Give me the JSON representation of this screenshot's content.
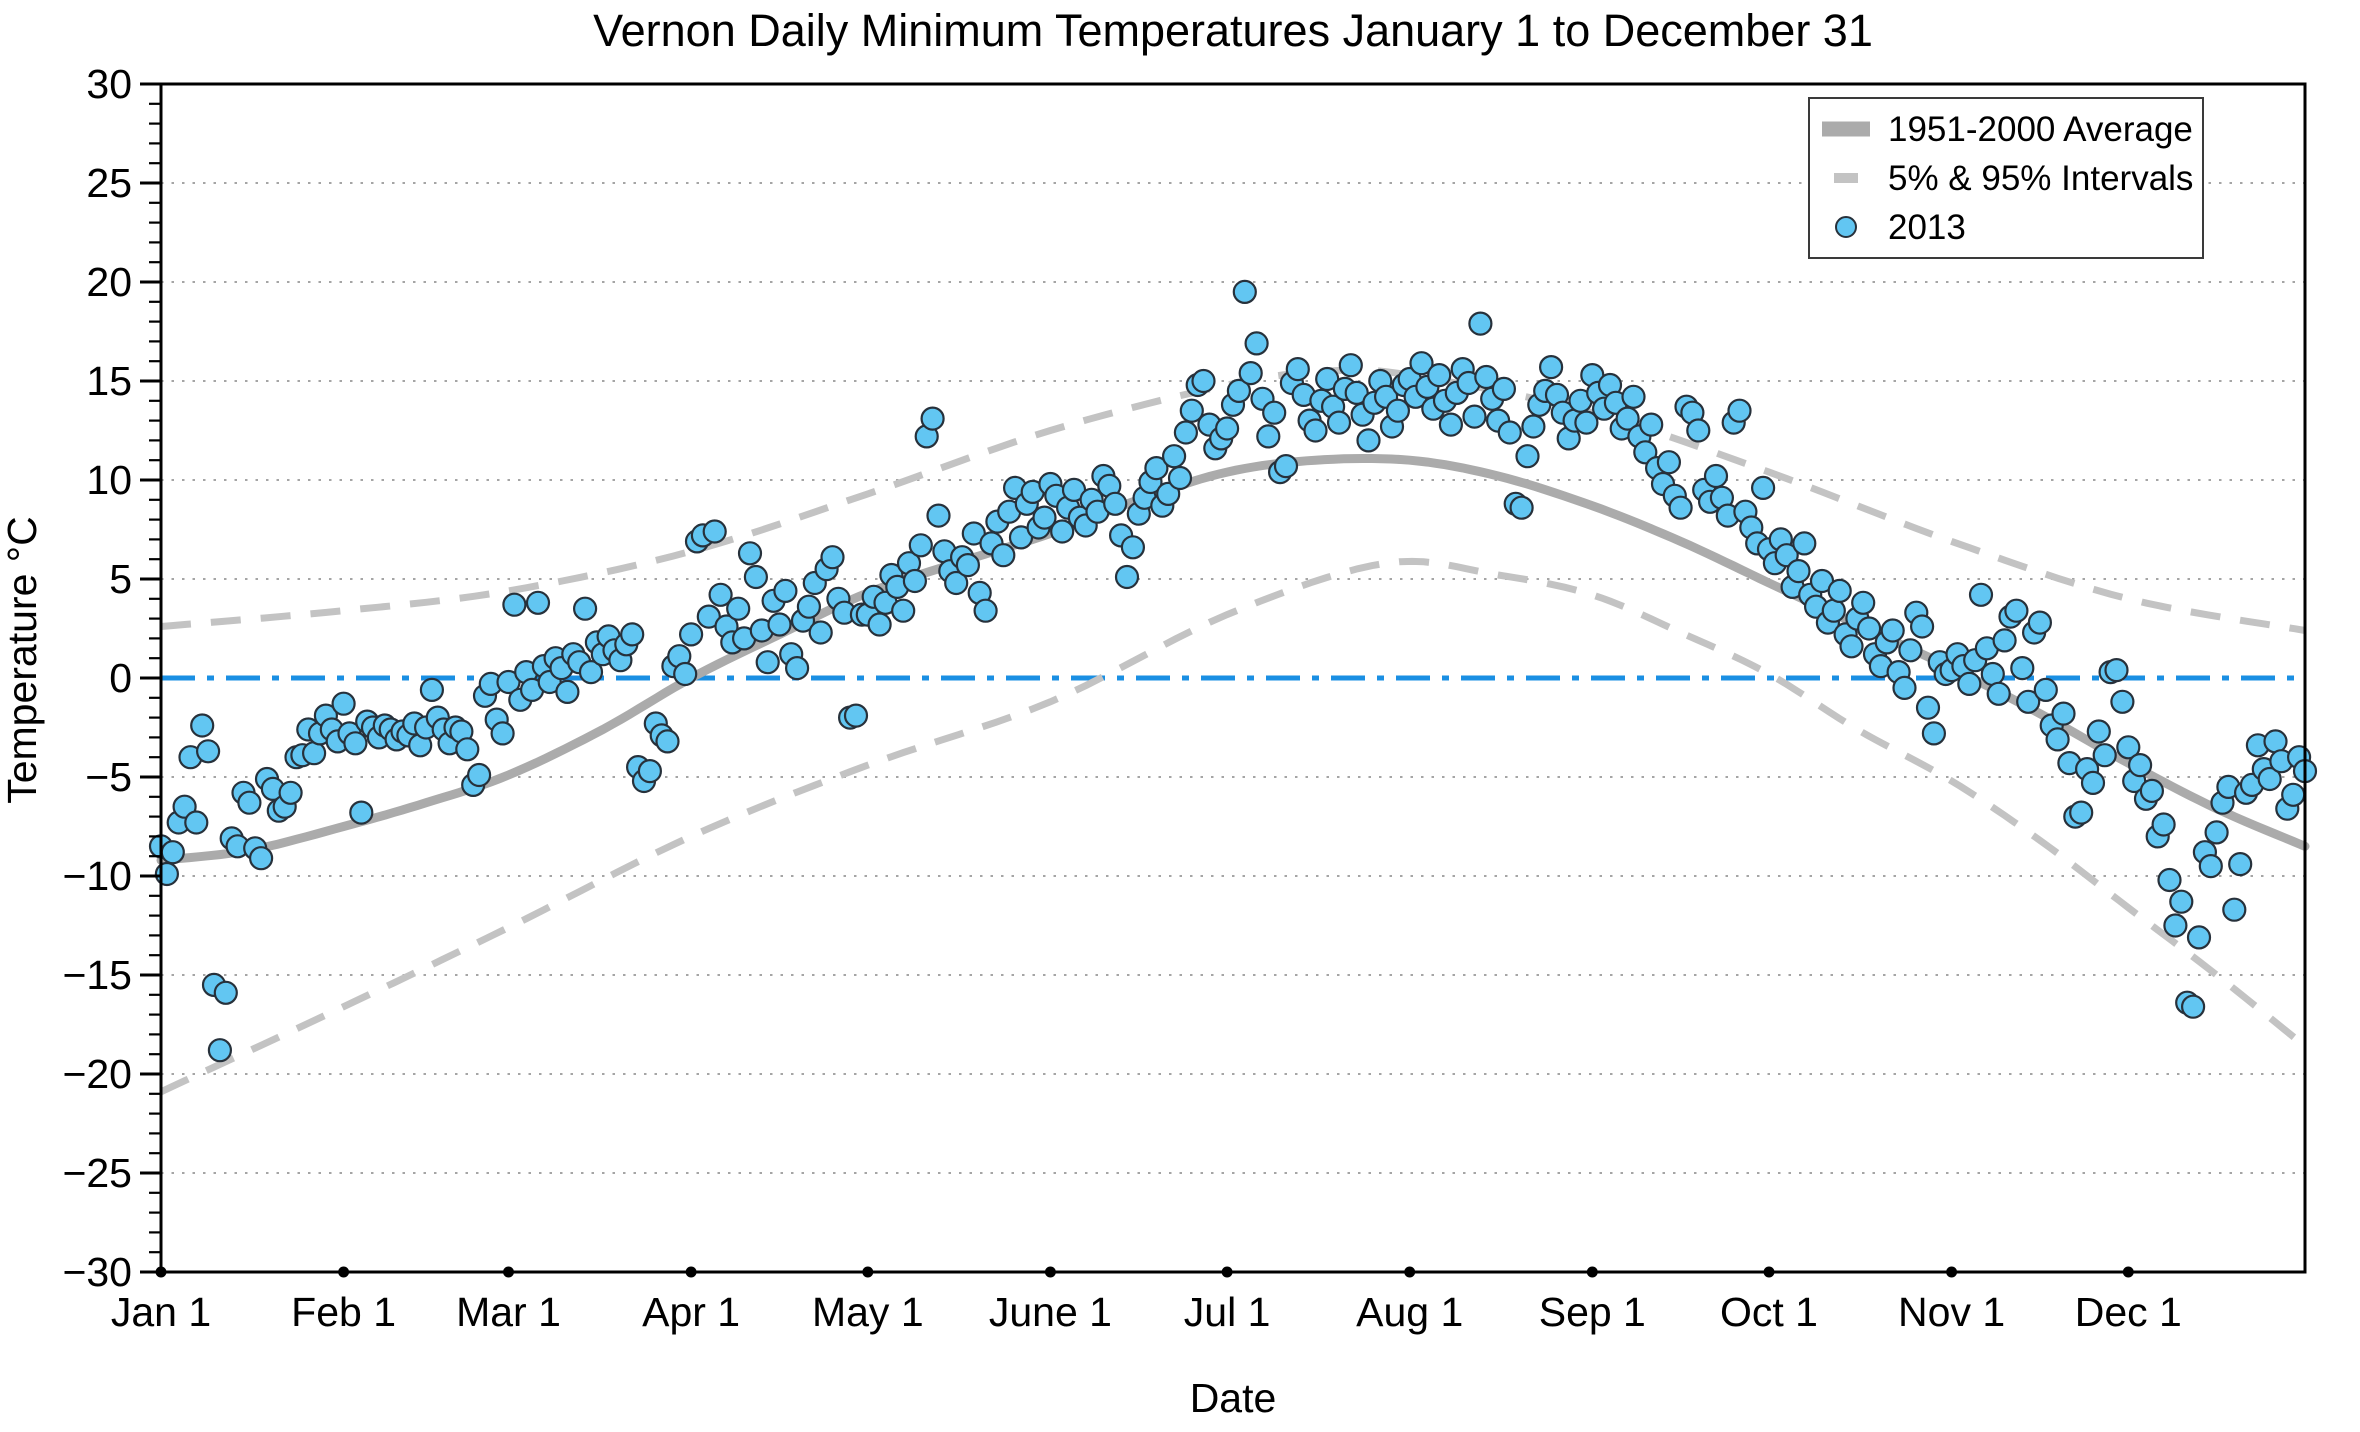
{
  "title": "Vernon Daily Minimum Temperatures January 1 to December 31",
  "axis": {
    "x_label": "Date",
    "y_label": "Temperature °C",
    "y_tick_labels": [
      "30",
      "25",
      "20",
      "15",
      "10",
      "5",
      "0",
      "−5",
      "−10",
      "−15",
      "−20",
      "−25",
      "−30"
    ],
    "y_tick_values": [
      30,
      25,
      20,
      15,
      10,
      5,
      0,
      -5,
      -10,
      -15,
      -20,
      -25,
      -30
    ],
    "y_minor_step": 1,
    "x_tick_labels": [
      "Jan 1",
      "Feb 1",
      "Mar 1",
      "Apr 1",
      "May 1",
      "June 1",
      "Jul 1",
      "Aug 1",
      "Sep 1",
      "Oct 1",
      "Nov 1",
      "Dec 1"
    ],
    "x_tick_days": [
      0,
      31,
      59,
      90,
      120,
      151,
      181,
      212,
      243,
      273,
      304,
      334
    ]
  },
  "legend": {
    "items": [
      {
        "label": "1951-2000 Average",
        "swatch": "thick-gray-line"
      },
      {
        "label": "5% & 95% Intervals",
        "swatch": "gray-dash"
      },
      {
        "label": "2013",
        "swatch": "blue-dot"
      }
    ]
  },
  "colors": {
    "average_line": "#ABABAB",
    "interval_dash": "#C3C3C3",
    "zero_line": "#1A8FE3",
    "scatter_fill": "#62C6F2",
    "scatter_edge": "#27313B",
    "grid": "#8F8F8F",
    "axis": "#000000"
  },
  "chart_data": {
    "type": "scatter",
    "title": "Vernon Daily Minimum Temperatures January 1 to December 31",
    "xlabel": "Date",
    "ylabel": "Temperature °C",
    "x_unit": "day_of_year",
    "xlim": [
      0,
      364
    ],
    "ylim": [
      -30,
      30
    ],
    "grid": "dotted horizontal lines at multiples of 5 °C",
    "legend_position": "top-right",
    "zero_reference_line": 0,
    "month_start_days": [
      0,
      31,
      59,
      90,
      120,
      151,
      181,
      212,
      243,
      273,
      304,
      334
    ],
    "series": [
      {
        "name": "1951-2000 Average",
        "type": "line",
        "style": "thick-solid-gray",
        "points": [
          [
            0,
            -9.2
          ],
          [
            15,
            -8.7
          ],
          [
            31,
            -7.5
          ],
          [
            45,
            -6.3
          ],
          [
            59,
            -4.9
          ],
          [
            75,
            -2.6
          ],
          [
            90,
            0.0
          ],
          [
            105,
            2.2
          ],
          [
            120,
            4.3
          ],
          [
            135,
            5.8
          ],
          [
            151,
            7.3
          ],
          [
            166,
            9.0
          ],
          [
            181,
            10.4
          ],
          [
            196,
            11.0
          ],
          [
            212,
            11.0
          ],
          [
            227,
            10.2
          ],
          [
            243,
            8.7
          ],
          [
            258,
            6.9
          ],
          [
            273,
            4.8
          ],
          [
            288,
            2.7
          ],
          [
            304,
            0.5
          ],
          [
            319,
            -1.8
          ],
          [
            334,
            -4.3
          ],
          [
            349,
            -6.6
          ],
          [
            364,
            -8.5
          ]
        ]
      },
      {
        "name": "95% Interval",
        "type": "line",
        "style": "dashed-gray",
        "points": [
          [
            0,
            2.6
          ],
          [
            31,
            3.4
          ],
          [
            59,
            4.4
          ],
          [
            90,
            6.4
          ],
          [
            120,
            9.3
          ],
          [
            151,
            12.5
          ],
          [
            181,
            14.8
          ],
          [
            198,
            15.5
          ],
          [
            212,
            15.3
          ],
          [
            243,
            13.4
          ],
          [
            273,
            10.4
          ],
          [
            304,
            6.9
          ],
          [
            334,
            4.0
          ],
          [
            364,
            2.4
          ]
        ]
      },
      {
        "name": "5% Interval",
        "type": "line",
        "style": "dashed-gray",
        "points": [
          [
            0,
            -20.9
          ],
          [
            31,
            -16.6
          ],
          [
            59,
            -12.6
          ],
          [
            90,
            -8.0
          ],
          [
            120,
            -4.4
          ],
          [
            151,
            -1.2
          ],
          [
            181,
            3.2
          ],
          [
            208,
            5.8
          ],
          [
            227,
            5.2
          ],
          [
            243,
            4.2
          ],
          [
            258,
            2.3
          ],
          [
            273,
            0.2
          ],
          [
            288,
            -2.6
          ],
          [
            304,
            -5.2
          ],
          [
            319,
            -8.2
          ],
          [
            334,
            -11.6
          ],
          [
            349,
            -15.0
          ],
          [
            364,
            -18.6
          ]
        ]
      },
      {
        "name": "2013",
        "type": "scatter",
        "start_day": 0,
        "daily_min_temps_c": [
          -8.5,
          -9.9,
          -8.8,
          -7.3,
          -6.5,
          -4.0,
          -7.3,
          -2.4,
          -3.7,
          -15.5,
          -18.8,
          -15.9,
          -8.1,
          -8.5,
          -5.8,
          -6.3,
          -8.6,
          -9.1,
          -5.1,
          -5.6,
          -6.7,
          -6.5,
          -5.8,
          -4.0,
          -3.9,
          -2.6,
          -3.8,
          -2.8,
          -1.9,
          -2.6,
          -3.2,
          -1.3,
          -2.8,
          -3.3,
          -6.8,
          -2.2,
          -2.5,
          -3.0,
          -2.4,
          -2.6,
          -3.1,
          -2.7,
          -2.9,
          -2.3,
          -3.4,
          -2.5,
          -0.6,
          -2.0,
          -2.6,
          -3.3,
          -2.5,
          -2.7,
          -3.6,
          -5.4,
          -4.9,
          -0.9,
          -0.3,
          -2.1,
          -2.8,
          -0.2,
          3.7,
          -1.1,
          0.3,
          -0.6,
          3.8,
          0.6,
          -0.2,
          1.0,
          0.5,
          -0.7,
          1.2,
          0.8,
          3.5,
          0.3,
          1.8,
          1.2,
          2.1,
          1.4,
          0.9,
          1.7,
          2.2,
          -4.5,
          -5.2,
          -4.7,
          -2.3,
          -2.9,
          -3.2,
          0.6,
          1.1,
          0.2,
          2.2,
          6.9,
          7.2,
          3.1,
          7.4,
          4.2,
          2.6,
          1.8,
          3.5,
          2.0,
          6.3,
          5.1,
          2.4,
          0.8,
          3.9,
          2.7,
          4.4,
          1.2,
          0.5,
          2.9,
          3.6,
          4.8,
          2.3,
          5.5,
          6.1,
          4.0,
          3.3,
          -2.0,
          -1.9,
          3.2,
          3.2,
          4.1,
          2.7,
          3.8,
          5.2,
          4.6,
          3.4,
          5.8,
          4.9,
          6.7,
          12.2,
          13.1,
          8.2,
          6.4,
          5.4,
          4.8,
          6.1,
          5.7,
          7.3,
          4.3,
          3.4,
          6.8,
          7.9,
          6.2,
          8.4,
          9.6,
          7.1,
          8.8,
          9.4,
          7.6,
          8.1,
          9.8,
          9.2,
          7.4,
          8.6,
          9.5,
          8.1,
          7.7,
          9.0,
          8.4,
          10.2,
          9.7,
          8.8,
          7.2,
          5.1,
          6.6,
          8.3,
          9.1,
          9.9,
          10.6,
          8.7,
          9.3,
          11.2,
          10.1,
          12.4,
          13.5,
          14.8,
          15.0,
          12.8,
          11.6,
          12.1,
          12.6,
          13.8,
          14.5,
          19.5,
          15.4,
          16.9,
          14.1,
          12.2,
          13.4,
          10.4,
          10.7,
          14.9,
          15.6,
          14.3,
          13.0,
          12.5,
          14.0,
          15.1,
          13.7,
          12.9,
          14.6,
          15.8,
          14.4,
          13.3,
          12.0,
          13.9,
          15.0,
          14.2,
          12.7,
          13.5,
          14.8,
          15.1,
          14.2,
          15.9,
          14.7,
          13.6,
          15.3,
          14.0,
          12.8,
          14.4,
          15.6,
          14.9,
          13.2,
          17.9,
          15.2,
          14.1,
          13.0,
          14.6,
          12.4,
          8.8,
          8.6,
          11.2,
          12.7,
          13.8,
          14.5,
          15.7,
          14.3,
          13.4,
          12.1,
          13.0,
          14.0,
          12.9,
          15.3,
          14.4,
          13.6,
          14.8,
          13.9,
          12.6,
          13.1,
          14.2,
          12.2,
          11.4,
          12.8,
          10.6,
          9.8,
          10.9,
          9.2,
          8.6,
          13.7,
          13.4,
          12.5,
          9.5,
          8.9,
          10.2,
          9.1,
          8.2,
          12.9,
          13.5,
          8.4,
          7.6,
          6.8,
          9.6,
          6.5,
          5.8,
          7.0,
          6.2,
          4.6,
          5.4,
          6.8,
          4.2,
          3.6,
          4.9,
          2.8,
          3.4,
          4.4,
          2.2,
          1.6,
          3.0,
          3.8,
          2.5,
          1.2,
          0.6,
          1.8,
          2.4,
          0.3,
          -0.5,
          1.4,
          3.3,
          2.6,
          -1.5,
          -2.8,
          0.8,
          0.2,
          0.4,
          1.2,
          0.6,
          -0.3,
          0.9,
          4.2,
          1.5,
          0.2,
          -0.8,
          1.9,
          3.1,
          3.4,
          0.5,
          -1.2,
          2.3,
          2.8,
          -0.6,
          -2.4,
          -3.1,
          -1.8,
          -4.3,
          -7.0,
          -6.8,
          -4.6,
          -5.3,
          -2.7,
          -3.9,
          0.3,
          0.4,
          -1.2,
          -3.5,
          -5.2,
          -4.4,
          -6.1,
          -5.7,
          -8.0,
          -7.4,
          -10.2,
          -12.5,
          -11.3,
          -16.4,
          -16.6,
          -13.1,
          -8.8,
          -9.5,
          -7.8,
          -6.3,
          -5.5,
          -11.7,
          -9.4,
          -5.8,
          -5.4,
          -3.4,
          -4.6,
          -5.1,
          -3.2,
          -4.2,
          -6.6,
          -5.9,
          -4.0,
          -4.7
        ]
      }
    ]
  }
}
